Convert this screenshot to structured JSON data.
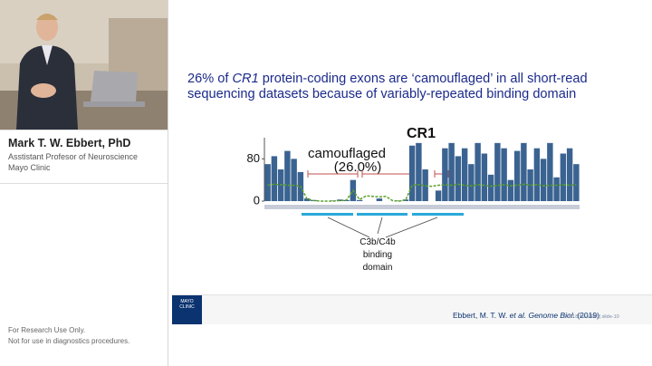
{
  "speaker": {
    "name": "Mark T. W. Ebbert, PhD",
    "role": "Asstistant Profesor of Neuroscience",
    "affiliation": "Mayo Clinic"
  },
  "disclaimer": [
    "For Research Use Only.",
    "Not for use in diagnostics procedures."
  ],
  "slide": {
    "title_parts": [
      "26% of ",
      "CR1",
      " protein-coding exons are ‘camouflaged’ in all short-read sequencing datasets because of variably-repeated binding domain"
    ],
    "figure": {
      "type": "bar",
      "title": "CR1",
      "annotation": [
        "camouflaged",
        "(26.0%)"
      ],
      "domain_label": [
        "C3b/C4b",
        "binding",
        "domain"
      ],
      "ylim": [
        0,
        120
      ],
      "yticks": [
        0,
        80
      ],
      "series": [
        {
          "color": "#3b6391",
          "values": [
            70,
            85,
            60,
            95,
            80,
            55,
            5,
            2,
            0,
            0,
            1,
            3,
            2,
            40,
            2,
            0,
            0,
            5,
            0,
            0,
            1,
            3,
            105,
            110,
            60,
            0,
            20,
            100,
            110,
            85,
            100,
            70,
            110,
            90,
            50,
            110,
            100,
            40,
            95,
            110,
            60,
            100,
            80,
            110,
            45,
            90,
            100,
            70
          ]
        },
        {
          "color": "#5aa02c",
          "kind": "line",
          "values": [
            30,
            32,
            31,
            30,
            30,
            28,
            4,
            1,
            0,
            0,
            0,
            1,
            2,
            20,
            3,
            10,
            9,
            8,
            9,
            1,
            0,
            2,
            30,
            31,
            29,
            28,
            30,
            31,
            30,
            32,
            30,
            29,
            31,
            30,
            28,
            30,
            31,
            29,
            30,
            32,
            30,
            31,
            29,
            30,
            30,
            31,
            30,
            31
          ]
        }
      ]
    },
    "logo": [
      "MAYO",
      "CLINIC"
    ],
    "citation": [
      "Ebbert, M. T. W. ",
      "et al.",
      " Genome Biol.",
      " (2019)"
    ],
    "copyright": "©2018 MFMER | slide-10"
  }
}
